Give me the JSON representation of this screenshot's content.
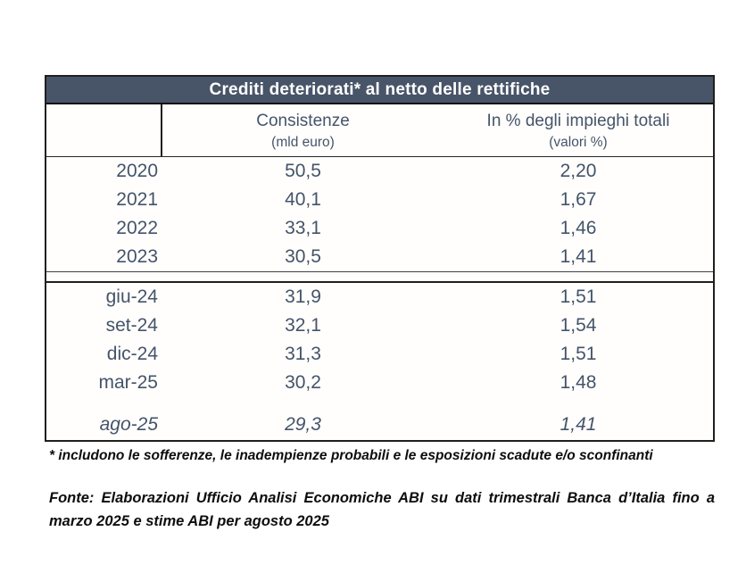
{
  "table": {
    "title": "Crediti deteriorati* al netto delle rettifiche",
    "header": {
      "col1": "",
      "col2_label": "Consistenze",
      "col2_sub": "(mld euro)",
      "col3_label": "In % degli impieghi totali",
      "col3_sub": "(valori %)"
    },
    "annual_rows": [
      {
        "label": "2020",
        "consistenze": "50,5",
        "percent": "2,20"
      },
      {
        "label": "2021",
        "consistenze": "40,1",
        "percent": "1,67"
      },
      {
        "label": "2022",
        "consistenze": "33,1",
        "percent": "1,46"
      },
      {
        "label": "2023",
        "consistenze": "30,5",
        "percent": "1,41"
      }
    ],
    "quarterly_rows": [
      {
        "label": "giu-24",
        "consistenze": "31,9",
        "percent": "1,51"
      },
      {
        "label": "set-24",
        "consistenze": "32,1",
        "percent": "1,54"
      },
      {
        "label": "dic-24",
        "consistenze": "31,3",
        "percent": "1,51"
      },
      {
        "label": "mar-25",
        "consistenze": "30,2",
        "percent": "1,48"
      }
    ],
    "estimate_row": {
      "label": "ago-25",
      "consistenze": "29,3",
      "percent": "1,41"
    }
  },
  "notes": {
    "footnote": "* includono le sofferenze, le inadempienze probabili e le esposizioni scadute e/o sconfinanti",
    "source_line1": "Fonte: Elaborazioni Ufficio Analisi Economiche ABI su dati trimestrali Banca d’Italia fino a",
    "source_line2": "marzo 2025 e stime ABI per agosto 2025"
  },
  "colors": {
    "title_bg": "#485468",
    "title_text": "#ffffff",
    "data_text": "#44546a",
    "border": "#1f1f1f"
  }
}
